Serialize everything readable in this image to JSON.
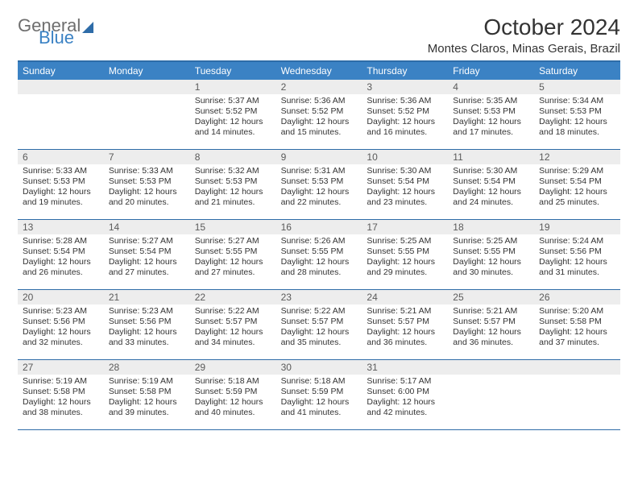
{
  "brand": {
    "part1": "General",
    "part2": "Blue"
  },
  "title": "October 2024",
  "location": "Montes Claros, Minas Gerais, Brazil",
  "colors": {
    "header_bg": "#3b82c4",
    "border": "#2e6ca8",
    "daynum_bg": "#ededed",
    "text": "#333333",
    "logo_gray": "#6e6e6e"
  },
  "days_of_week": [
    "Sunday",
    "Monday",
    "Tuesday",
    "Wednesday",
    "Thursday",
    "Friday",
    "Saturday"
  ],
  "weeks": [
    [
      {
        "n": "",
        "sr": "",
        "ss": "",
        "dl": ""
      },
      {
        "n": "",
        "sr": "",
        "ss": "",
        "dl": ""
      },
      {
        "n": "1",
        "sr": "5:37 AM",
        "ss": "5:52 PM",
        "dl": "12 hours and 14 minutes."
      },
      {
        "n": "2",
        "sr": "5:36 AM",
        "ss": "5:52 PM",
        "dl": "12 hours and 15 minutes."
      },
      {
        "n": "3",
        "sr": "5:36 AM",
        "ss": "5:52 PM",
        "dl": "12 hours and 16 minutes."
      },
      {
        "n": "4",
        "sr": "5:35 AM",
        "ss": "5:53 PM",
        "dl": "12 hours and 17 minutes."
      },
      {
        "n": "5",
        "sr": "5:34 AM",
        "ss": "5:53 PM",
        "dl": "12 hours and 18 minutes."
      }
    ],
    [
      {
        "n": "6",
        "sr": "5:33 AM",
        "ss": "5:53 PM",
        "dl": "12 hours and 19 minutes."
      },
      {
        "n": "7",
        "sr": "5:33 AM",
        "ss": "5:53 PM",
        "dl": "12 hours and 20 minutes."
      },
      {
        "n": "8",
        "sr": "5:32 AM",
        "ss": "5:53 PM",
        "dl": "12 hours and 21 minutes."
      },
      {
        "n": "9",
        "sr": "5:31 AM",
        "ss": "5:53 PM",
        "dl": "12 hours and 22 minutes."
      },
      {
        "n": "10",
        "sr": "5:30 AM",
        "ss": "5:54 PM",
        "dl": "12 hours and 23 minutes."
      },
      {
        "n": "11",
        "sr": "5:30 AM",
        "ss": "5:54 PM",
        "dl": "12 hours and 24 minutes."
      },
      {
        "n": "12",
        "sr": "5:29 AM",
        "ss": "5:54 PM",
        "dl": "12 hours and 25 minutes."
      }
    ],
    [
      {
        "n": "13",
        "sr": "5:28 AM",
        "ss": "5:54 PM",
        "dl": "12 hours and 26 minutes."
      },
      {
        "n": "14",
        "sr": "5:27 AM",
        "ss": "5:54 PM",
        "dl": "12 hours and 27 minutes."
      },
      {
        "n": "15",
        "sr": "5:27 AM",
        "ss": "5:55 PM",
        "dl": "12 hours and 27 minutes."
      },
      {
        "n": "16",
        "sr": "5:26 AM",
        "ss": "5:55 PM",
        "dl": "12 hours and 28 minutes."
      },
      {
        "n": "17",
        "sr": "5:25 AM",
        "ss": "5:55 PM",
        "dl": "12 hours and 29 minutes."
      },
      {
        "n": "18",
        "sr": "5:25 AM",
        "ss": "5:55 PM",
        "dl": "12 hours and 30 minutes."
      },
      {
        "n": "19",
        "sr": "5:24 AM",
        "ss": "5:56 PM",
        "dl": "12 hours and 31 minutes."
      }
    ],
    [
      {
        "n": "20",
        "sr": "5:23 AM",
        "ss": "5:56 PM",
        "dl": "12 hours and 32 minutes."
      },
      {
        "n": "21",
        "sr": "5:23 AM",
        "ss": "5:56 PM",
        "dl": "12 hours and 33 minutes."
      },
      {
        "n": "22",
        "sr": "5:22 AM",
        "ss": "5:57 PM",
        "dl": "12 hours and 34 minutes."
      },
      {
        "n": "23",
        "sr": "5:22 AM",
        "ss": "5:57 PM",
        "dl": "12 hours and 35 minutes."
      },
      {
        "n": "24",
        "sr": "5:21 AM",
        "ss": "5:57 PM",
        "dl": "12 hours and 36 minutes."
      },
      {
        "n": "25",
        "sr": "5:21 AM",
        "ss": "5:57 PM",
        "dl": "12 hours and 36 minutes."
      },
      {
        "n": "26",
        "sr": "5:20 AM",
        "ss": "5:58 PM",
        "dl": "12 hours and 37 minutes."
      }
    ],
    [
      {
        "n": "27",
        "sr": "5:19 AM",
        "ss": "5:58 PM",
        "dl": "12 hours and 38 minutes."
      },
      {
        "n": "28",
        "sr": "5:19 AM",
        "ss": "5:58 PM",
        "dl": "12 hours and 39 minutes."
      },
      {
        "n": "29",
        "sr": "5:18 AM",
        "ss": "5:59 PM",
        "dl": "12 hours and 40 minutes."
      },
      {
        "n": "30",
        "sr": "5:18 AM",
        "ss": "5:59 PM",
        "dl": "12 hours and 41 minutes."
      },
      {
        "n": "31",
        "sr": "5:17 AM",
        "ss": "6:00 PM",
        "dl": "12 hours and 42 minutes."
      },
      {
        "n": "",
        "sr": "",
        "ss": "",
        "dl": ""
      },
      {
        "n": "",
        "sr": "",
        "ss": "",
        "dl": ""
      }
    ]
  ],
  "labels": {
    "sunrise": "Sunrise:",
    "sunset": "Sunset:",
    "daylight": "Daylight:"
  }
}
